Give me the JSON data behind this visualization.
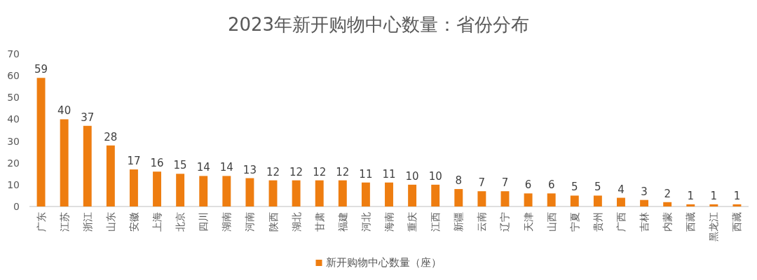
{
  "chart_data": {
    "type": "bar",
    "title": "2023年新开购物中心数量：省份分布",
    "categories": [
      "广东",
      "江苏",
      "浙江",
      "山东",
      "安徽",
      "上海",
      "北京",
      "四川",
      "湖南",
      "河南",
      "陕西",
      "湖北",
      "甘肃",
      "福建",
      "河北",
      "海南",
      "重庆",
      "江西",
      "新疆",
      "云南",
      "辽宁",
      "天津",
      "山西",
      "宁夏",
      "贵州",
      "广西",
      "吉林",
      "内蒙",
      "西藏",
      "黑龙江",
      "西藏"
    ],
    "series": [
      {
        "name": "新开购物中心数量（座）",
        "color": "#ee7d10",
        "values": [
          59,
          40,
          37,
          28,
          17,
          16,
          15,
          14,
          14,
          13,
          12,
          12,
          12,
          12,
          11,
          11,
          10,
          10,
          8,
          7,
          7,
          6,
          6,
          5,
          5,
          4,
          3,
          2,
          1,
          1,
          1
        ]
      }
    ],
    "ylim": [
      0,
      70
    ],
    "yticks": [
      0,
      10,
      20,
      30,
      40,
      50,
      60,
      70
    ],
    "data_labels": true,
    "grid": false,
    "legend": "bottom"
  }
}
